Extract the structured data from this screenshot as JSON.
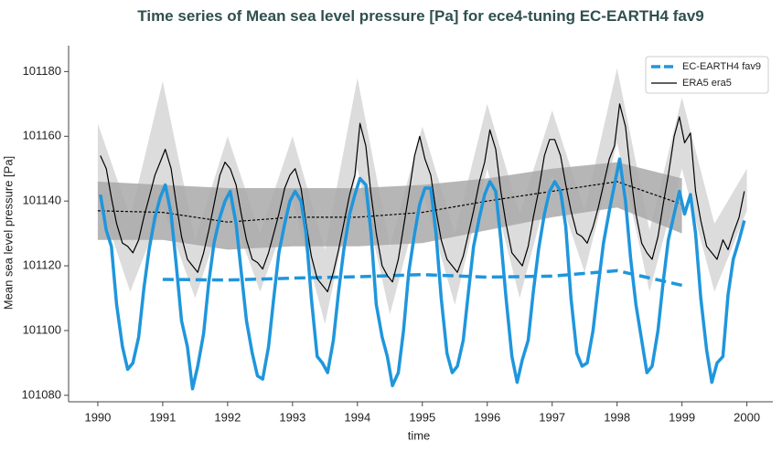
{
  "chart_data": {
    "type": "line",
    "title": "Time series of Mean sea level pressure [Pa] for ece4-tuning EC-EARTH4 fav9",
    "xlabel": "time",
    "ylabel": "Mean sea level pressure [Pa]",
    "xlim": [
      1989.55,
      2000.4
    ],
    "ylim": [
      101078,
      101188
    ],
    "xticks": [
      1990,
      1991,
      1992,
      1993,
      1994,
      1995,
      1996,
      1997,
      1998,
      1999,
      2000
    ],
    "yticks": [
      101080,
      101100,
      101120,
      101140,
      101160,
      101180
    ],
    "legend": "upper right",
    "x": [
      1990.04,
      1990.13,
      1990.21,
      1990.29,
      1990.38,
      1990.46,
      1990.54,
      1990.63,
      1990.71,
      1990.79,
      1990.88,
      1990.96,
      1991.04,
      1991.13,
      1991.21,
      1991.29,
      1991.38,
      1991.46,
      1991.54,
      1991.63,
      1991.71,
      1991.79,
      1991.88,
      1991.96,
      1992.04,
      1992.13,
      1992.21,
      1992.29,
      1992.38,
      1992.46,
      1992.54,
      1992.63,
      1992.71,
      1992.79,
      1992.88,
      1992.96,
      1993.04,
      1993.13,
      1993.21,
      1993.29,
      1993.38,
      1993.46,
      1993.54,
      1993.63,
      1993.71,
      1993.79,
      1993.88,
      1993.96,
      1994.04,
      1994.13,
      1994.21,
      1994.29,
      1994.38,
      1994.46,
      1994.54,
      1994.63,
      1994.71,
      1994.79,
      1994.88,
      1994.96,
      1995.04,
      1995.13,
      1995.21,
      1995.29,
      1995.38,
      1995.46,
      1995.54,
      1995.63,
      1995.71,
      1995.79,
      1995.88,
      1995.96,
      1996.04,
      1996.13,
      1996.21,
      1996.29,
      1996.38,
      1996.46,
      1996.54,
      1996.63,
      1996.71,
      1996.79,
      1996.88,
      1996.96,
      1997.04,
      1997.13,
      1997.21,
      1997.29,
      1997.38,
      1997.46,
      1997.54,
      1997.63,
      1997.71,
      1997.79,
      1997.88,
      1997.96,
      1998.04,
      1998.13,
      1998.21,
      1998.29,
      1998.38,
      1998.46,
      1998.54,
      1998.63,
      1998.71,
      1998.79,
      1998.88,
      1998.96,
      1999.04,
      1999.13,
      1999.21,
      1999.29,
      1999.38,
      1999.46,
      1999.54,
      1999.63,
      1999.71,
      1999.79,
      1999.88,
      1999.96
    ],
    "bands": [
      {
        "color": "#dcdcdc",
        "x": [
          1990,
          1990.5,
          1991,
          1991.5,
          1992,
          1992.5,
          1993,
          1993.5,
          1994,
          1994.5,
          1995,
          1995.5,
          1996,
          1996.5,
          1997,
          1997.5,
          1998,
          1998.5,
          1999,
          1999.5,
          2000
        ],
        "upper": [
          101164,
          101135,
          101177,
          101128,
          101160,
          101130,
          101160,
          101125,
          101178,
          101126,
          101163,
          101130,
          101170,
          101136,
          101168,
          101137,
          101181,
          101131,
          101172,
          101133,
          101150
        ],
        "lower": [
          101142,
          101112,
          101138,
          101110,
          101140,
          101112,
          101140,
          101102,
          101150,
          101105,
          101143,
          101108,
          101150,
          101110,
          101148,
          101118,
          101158,
          101112,
          101150,
          101112,
          101137
        ]
      },
      {
        "color": "#a9a9a9",
        "x": [
          1990,
          1991,
          1992,
          1993,
          1994,
          1995,
          1996,
          1997,
          1998,
          1999
        ],
        "upper": [
          101146,
          101145,
          101144,
          101144,
          101144,
          101145,
          101147,
          101150,
          101152,
          101147
        ],
        "lower": [
          101128,
          101128,
          101125,
          101126,
          101126,
          101127,
          101131,
          101135,
          101138,
          101130
        ]
      }
    ],
    "series": [
      {
        "name": "EC-EARTH4 fav9",
        "color": "#1f96dc",
        "width": 3.5,
        "values": [
          101142,
          101131,
          101126,
          101108,
          101095,
          101088,
          101090,
          101098,
          101113,
          101125,
          101135,
          101141,
          101145,
          101136,
          101120,
          101103,
          101095,
          101082,
          101089,
          101099,
          101115,
          101127,
          101135,
          101140,
          101143,
          101133,
          101118,
          101103,
          101093,
          101086,
          101085,
          101095,
          101110,
          101124,
          101133,
          101140,
          101143,
          101140,
          101130,
          101110,
          101092,
          101090,
          101087,
          101097,
          101112,
          101125,
          101136,
          101142,
          101147,
          101145,
          101130,
          101108,
          101098,
          101092,
          101083,
          101087,
          101100,
          101118,
          101130,
          101139,
          101144,
          101144,
          101130,
          101110,
          101093,
          101087,
          101089,
          101097,
          101112,
          101126,
          101135,
          101142,
          101146,
          101143,
          101128,
          101110,
          101092,
          101084,
          101091,
          101097,
          101112,
          101125,
          101136,
          101143,
          101146,
          101143,
          101132,
          101110,
          101093,
          101089,
          101090,
          101100,
          101114,
          101127,
          101137,
          101145,
          101153,
          101140,
          101122,
          101108,
          101097,
          101087,
          101089,
          101100,
          101115,
          101128,
          101136,
          101143,
          101136,
          101142,
          101130,
          101110,
          101094,
          101084,
          101090,
          101092,
          101111,
          101122,
          101128,
          101134
        ],
        "trend": {
          "x": [
            1991,
            1992,
            1993,
            1994,
            1995,
            1996,
            1997,
            1998,
            1999
          ],
          "values": [
            101115.8,
            101115.6,
            101116.2,
            101116.6,
            101117.3,
            101116.5,
            101116.8,
            101118.5,
            101114
          ]
        }
      },
      {
        "name": "ERA5 era5",
        "color": "#000000",
        "width": 1.2,
        "values": [
          101154,
          101150,
          101141,
          101133,
          101127,
          101126,
          101124,
          101128,
          101135,
          101141,
          101148,
          101152,
          101156,
          101150,
          101139,
          101129,
          101122,
          101120,
          101118,
          101124,
          101131,
          101139,
          101148,
          101152,
          101150,
          101145,
          101136,
          101128,
          101122,
          101121,
          101119,
          101124,
          101130,
          101136,
          101144,
          101148,
          101150,
          101144,
          101133,
          101123,
          101116,
          101114,
          101112,
          101118,
          101125,
          101133,
          101142,
          101148,
          101164,
          101157,
          101142,
          101130,
          101120,
          101117,
          101115,
          101122,
          101132,
          101142,
          101154,
          101160,
          101153,
          101148,
          101137,
          101128,
          101122,
          101120,
          101118,
          101123,
          101130,
          101137,
          101146,
          101152,
          101162,
          101156,
          101143,
          101133,
          101124,
          101122,
          101120,
          101126,
          101135,
          101143,
          101154,
          101159,
          101159,
          101154,
          101145,
          101137,
          101130,
          101129,
          101127,
          101132,
          101138,
          101145,
          101153,
          101157,
          101170,
          101163,
          101148,
          101136,
          101127,
          101124,
          101122,
          101129,
          101139,
          101148,
          101160,
          101166,
          101158,
          101161,
          101143,
          101134,
          101126,
          101124,
          101122,
          101128,
          101125,
          101130,
          101135,
          101143
        ],
        "trend": {
          "x": [
            1990,
            1991,
            1992,
            1993,
            1994,
            1995,
            1996,
            1997,
            1998,
            1999
          ],
          "values": [
            101137,
            101136.5,
            101133.5,
            101135,
            101135,
            101136.5,
            101140,
            101143,
            101146,
            101139
          ]
        }
      }
    ]
  }
}
